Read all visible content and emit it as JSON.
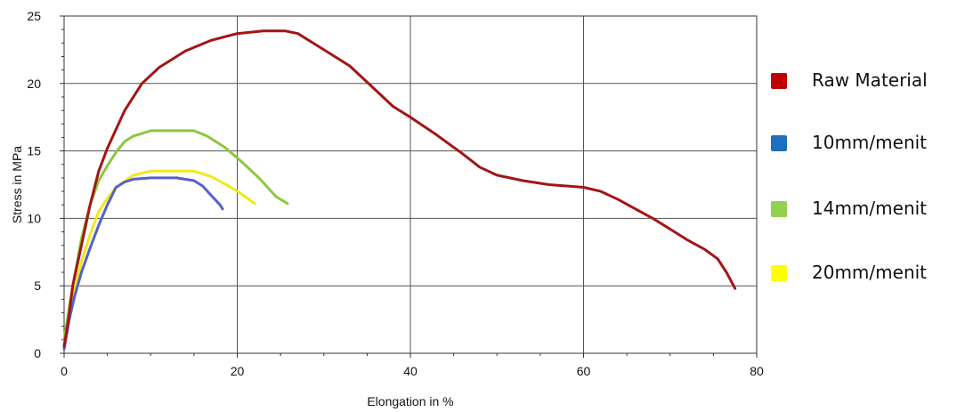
{
  "chart_data": {
    "type": "line",
    "title": "",
    "xlabel": "Elongation in %",
    "ylabel": "Stress in MPa",
    "xlim": [
      0,
      80
    ],
    "ylim": [
      0,
      25
    ],
    "x_ticks": [
      "0",
      "20",
      "40",
      "60",
      "80"
    ],
    "y_ticks": [
      "0",
      "5",
      "10",
      "15",
      "20",
      "25"
    ],
    "grid": true,
    "legend_position": "right",
    "series": [
      {
        "name": "Raw Material",
        "color": "#a31515",
        "points": [
          [
            0,
            0.5
          ],
          [
            0.5,
            2.5
          ],
          [
            1,
            5
          ],
          [
            2,
            8
          ],
          [
            3,
            11
          ],
          [
            4,
            13.5
          ],
          [
            5,
            15.2
          ],
          [
            7,
            18
          ],
          [
            9,
            20
          ],
          [
            11,
            21.2
          ],
          [
            14,
            22.4
          ],
          [
            17,
            23.2
          ],
          [
            20,
            23.7
          ],
          [
            23,
            23.9
          ],
          [
            25.5,
            23.9
          ],
          [
            27,
            23.7
          ],
          [
            30,
            22.5
          ],
          [
            33,
            21.3
          ],
          [
            36,
            19.5
          ],
          [
            38,
            18.3
          ],
          [
            40,
            17.5
          ],
          [
            43,
            16.2
          ],
          [
            46,
            14.8
          ],
          [
            48,
            13.8
          ],
          [
            50,
            13.2
          ],
          [
            53,
            12.8
          ],
          [
            56,
            12.5
          ],
          [
            60,
            12.3
          ],
          [
            62,
            12.0
          ],
          [
            64,
            11.4
          ],
          [
            66,
            10.7
          ],
          [
            68,
            10.0
          ],
          [
            70,
            9.2
          ],
          [
            72,
            8.4
          ],
          [
            74,
            7.7
          ],
          [
            75.5,
            7.0
          ],
          [
            76.5,
            6.0
          ],
          [
            77.5,
            4.8
          ]
        ]
      },
      {
        "name": "10mm/menit",
        "color": "#5560c8",
        "points": [
          [
            0,
            0.3
          ],
          [
            0.6,
            2.5
          ],
          [
            1.2,
            4.2
          ],
          [
            2,
            6
          ],
          [
            3,
            7.8
          ],
          [
            4,
            9.5
          ],
          [
            5,
            11
          ],
          [
            6,
            12.3
          ],
          [
            7,
            12.7
          ],
          [
            8,
            12.9
          ],
          [
            10,
            13
          ],
          [
            13,
            13
          ],
          [
            15,
            12.8
          ],
          [
            16,
            12.4
          ],
          [
            17,
            11.7
          ],
          [
            18,
            11
          ],
          [
            18.3,
            10.7
          ]
        ]
      },
      {
        "name": "14mm/menit",
        "color": "#8cc83c",
        "points": [
          [
            0,
            1
          ],
          [
            1,
            5
          ],
          [
            2,
            8.5
          ],
          [
            3,
            11
          ],
          [
            4,
            12.8
          ],
          [
            5,
            13.9
          ],
          [
            6,
            14.9
          ],
          [
            7,
            15.7
          ],
          [
            8,
            16.1
          ],
          [
            10,
            16.5
          ],
          [
            12,
            16.5
          ],
          [
            15,
            16.5
          ],
          [
            16.5,
            16.1
          ],
          [
            18.5,
            15.3
          ],
          [
            20.5,
            14.2
          ],
          [
            22.5,
            13.0
          ],
          [
            24.5,
            11.6
          ],
          [
            25.8,
            11.1
          ]
        ]
      },
      {
        "name": "20mm/menit",
        "color": "#f0e81a",
        "points": [
          [
            0,
            0.6
          ],
          [
            1,
            4
          ],
          [
            2,
            6.8
          ],
          [
            3,
            8.8
          ],
          [
            4,
            10.5
          ],
          [
            5,
            11.5
          ],
          [
            6,
            12.3
          ],
          [
            8,
            13.2
          ],
          [
            10,
            13.5
          ],
          [
            12,
            13.5
          ],
          [
            15,
            13.5
          ],
          [
            17,
            13.1
          ],
          [
            19,
            12.4
          ],
          [
            20.5,
            11.8
          ],
          [
            22,
            11.1
          ]
        ]
      }
    ]
  }
}
